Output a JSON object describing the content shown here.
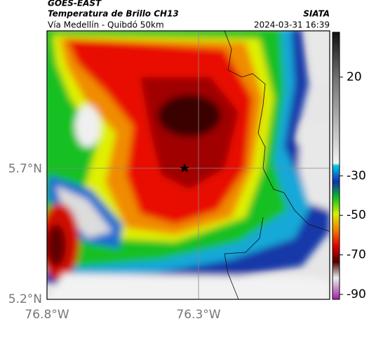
{
  "header": {
    "source": "GOES-EAST",
    "title": "Temperatura de Brillo CH13",
    "subtitle": "Vía Medellín - Quibdó 50km",
    "agency": "SIATA",
    "timestamp": "2024-03-31 16:39"
  },
  "map": {
    "lat_labels": [
      "5.7°N",
      "5.2°N"
    ],
    "lon_labels": [
      "76.8°W",
      "76.3°W"
    ]
  },
  "colorbar": {
    "lim": [
      -92.5,
      42.7
    ],
    "ticks": [
      20,
      -30,
      -50,
      -70,
      -90
    ]
  }
}
